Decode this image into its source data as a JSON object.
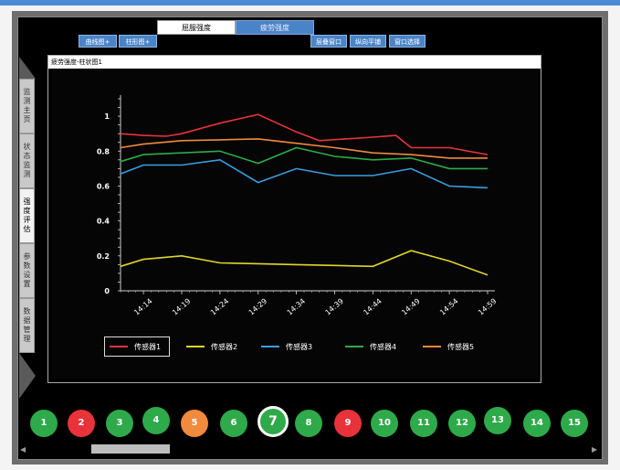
{
  "tabs": {
    "main": [
      {
        "label": "屈服强度",
        "active": true
      },
      {
        "label": "疲劳强度",
        "active": false
      }
    ]
  },
  "subButtons": {
    "left": [
      "曲线图+",
      "柱形图+"
    ],
    "right": [
      "层叠窗口",
      "纵向平铺",
      "窗口选择"
    ]
  },
  "sideNav": [
    "监测主页",
    "状态监测",
    "强度评估",
    "参数设置",
    "数据管理"
  ],
  "chartWindow": {
    "title": "疲劳强度-柱状图1"
  },
  "colors": {
    "accent": "#4e8bd6",
    "green": "#2eaa4a",
    "red": "#e8333a",
    "orange": "#f08a3c"
  },
  "chart_data": {
    "type": "line",
    "x": [
      "14:14",
      "14:19",
      "14:24",
      "14:29",
      "14:34",
      "14:39",
      "14:44",
      "14:49",
      "14:54",
      "14:59"
    ],
    "xFine": [
      14.11,
      14.14,
      14.17,
      14.19,
      14.24,
      14.29,
      14.31,
      14.34,
      14.39,
      14.44,
      14.49,
      14.54,
      14.59
    ],
    "ylim": [
      0,
      1.1
    ],
    "yticks": [
      "1",
      "0.8",
      "0.6",
      "0.4",
      "0.2",
      "0"
    ],
    "series": [
      {
        "name": "传感器1",
        "color": "#e8333a",
        "points": [
          [
            14.11,
            0.9
          ],
          [
            14.14,
            0.89
          ],
          [
            14.17,
            0.885
          ],
          [
            14.19,
            0.9
          ],
          [
            14.24,
            0.96
          ],
          [
            14.29,
            1.01
          ],
          [
            14.34,
            0.91
          ],
          [
            14.37,
            0.86
          ],
          [
            14.44,
            0.88
          ],
          [
            14.47,
            0.89
          ],
          [
            14.49,
            0.82
          ],
          [
            14.54,
            0.82
          ],
          [
            14.59,
            0.78
          ]
        ]
      },
      {
        "name": "传感器2",
        "color": "#e0d52a",
        "points": [
          [
            14.11,
            0.14
          ],
          [
            14.14,
            0.18
          ],
          [
            14.19,
            0.2
          ],
          [
            14.24,
            0.16
          ],
          [
            14.29,
            0.155
          ],
          [
            14.34,
            0.15
          ],
          [
            14.39,
            0.145
          ],
          [
            14.44,
            0.14
          ],
          [
            14.49,
            0.23
          ],
          [
            14.54,
            0.17
          ],
          [
            14.59,
            0.09
          ]
        ]
      },
      {
        "name": "传感器3",
        "color": "#3a9ee0",
        "points": [
          [
            14.11,
            0.67
          ],
          [
            14.14,
            0.72
          ],
          [
            14.19,
            0.72
          ],
          [
            14.24,
            0.75
          ],
          [
            14.29,
            0.62
          ],
          [
            14.34,
            0.7
          ],
          [
            14.39,
            0.66
          ],
          [
            14.44,
            0.66
          ],
          [
            14.49,
            0.7
          ],
          [
            14.54,
            0.6
          ],
          [
            14.59,
            0.59
          ]
        ]
      },
      {
        "name": "传感器4",
        "color": "#2eaa4a",
        "points": [
          [
            14.11,
            0.74
          ],
          [
            14.14,
            0.78
          ],
          [
            14.19,
            0.79
          ],
          [
            14.24,
            0.8
          ],
          [
            14.29,
            0.73
          ],
          [
            14.34,
            0.82
          ],
          [
            14.39,
            0.77
          ],
          [
            14.44,
            0.75
          ],
          [
            14.49,
            0.76
          ],
          [
            14.54,
            0.7
          ],
          [
            14.59,
            0.7
          ]
        ]
      },
      {
        "name": "传感器5",
        "color": "#f08a3c",
        "points": [
          [
            14.11,
            0.82
          ],
          [
            14.14,
            0.84
          ],
          [
            14.19,
            0.86
          ],
          [
            14.24,
            0.865
          ],
          [
            14.29,
            0.87
          ],
          [
            14.34,
            0.845
          ],
          [
            14.39,
            0.82
          ],
          [
            14.44,
            0.79
          ],
          [
            14.49,
            0.78
          ],
          [
            14.54,
            0.76
          ],
          [
            14.59,
            0.76
          ]
        ]
      }
    ],
    "legend": "bottom"
  },
  "circles": [
    {
      "label": "1",
      "color": "#2eaa4a"
    },
    {
      "label": "2",
      "color": "#e8333a"
    },
    {
      "label": "3",
      "color": "#2eaa4a"
    },
    {
      "label": "4",
      "color": "#2eaa4a"
    },
    {
      "label": "5",
      "color": "#f08a3c"
    },
    {
      "label": "6",
      "color": "#2eaa4a"
    },
    {
      "label": "7",
      "color": "#2eaa4a",
      "selected": true
    },
    {
      "label": "8",
      "color": "#2eaa4a"
    },
    {
      "label": "9",
      "color": "#e8333a"
    },
    {
      "label": "10",
      "color": "#2eaa4a"
    },
    {
      "label": "11",
      "color": "#2eaa4a"
    },
    {
      "label": "12",
      "color": "#2eaa4a"
    },
    {
      "label": "13",
      "color": "#2eaa4a"
    },
    {
      "label": "14",
      "color": "#2eaa4a"
    },
    {
      "label": "15",
      "color": "#2eaa4a"
    }
  ],
  "scroll": {
    "left": "◀",
    "right": "▶"
  }
}
